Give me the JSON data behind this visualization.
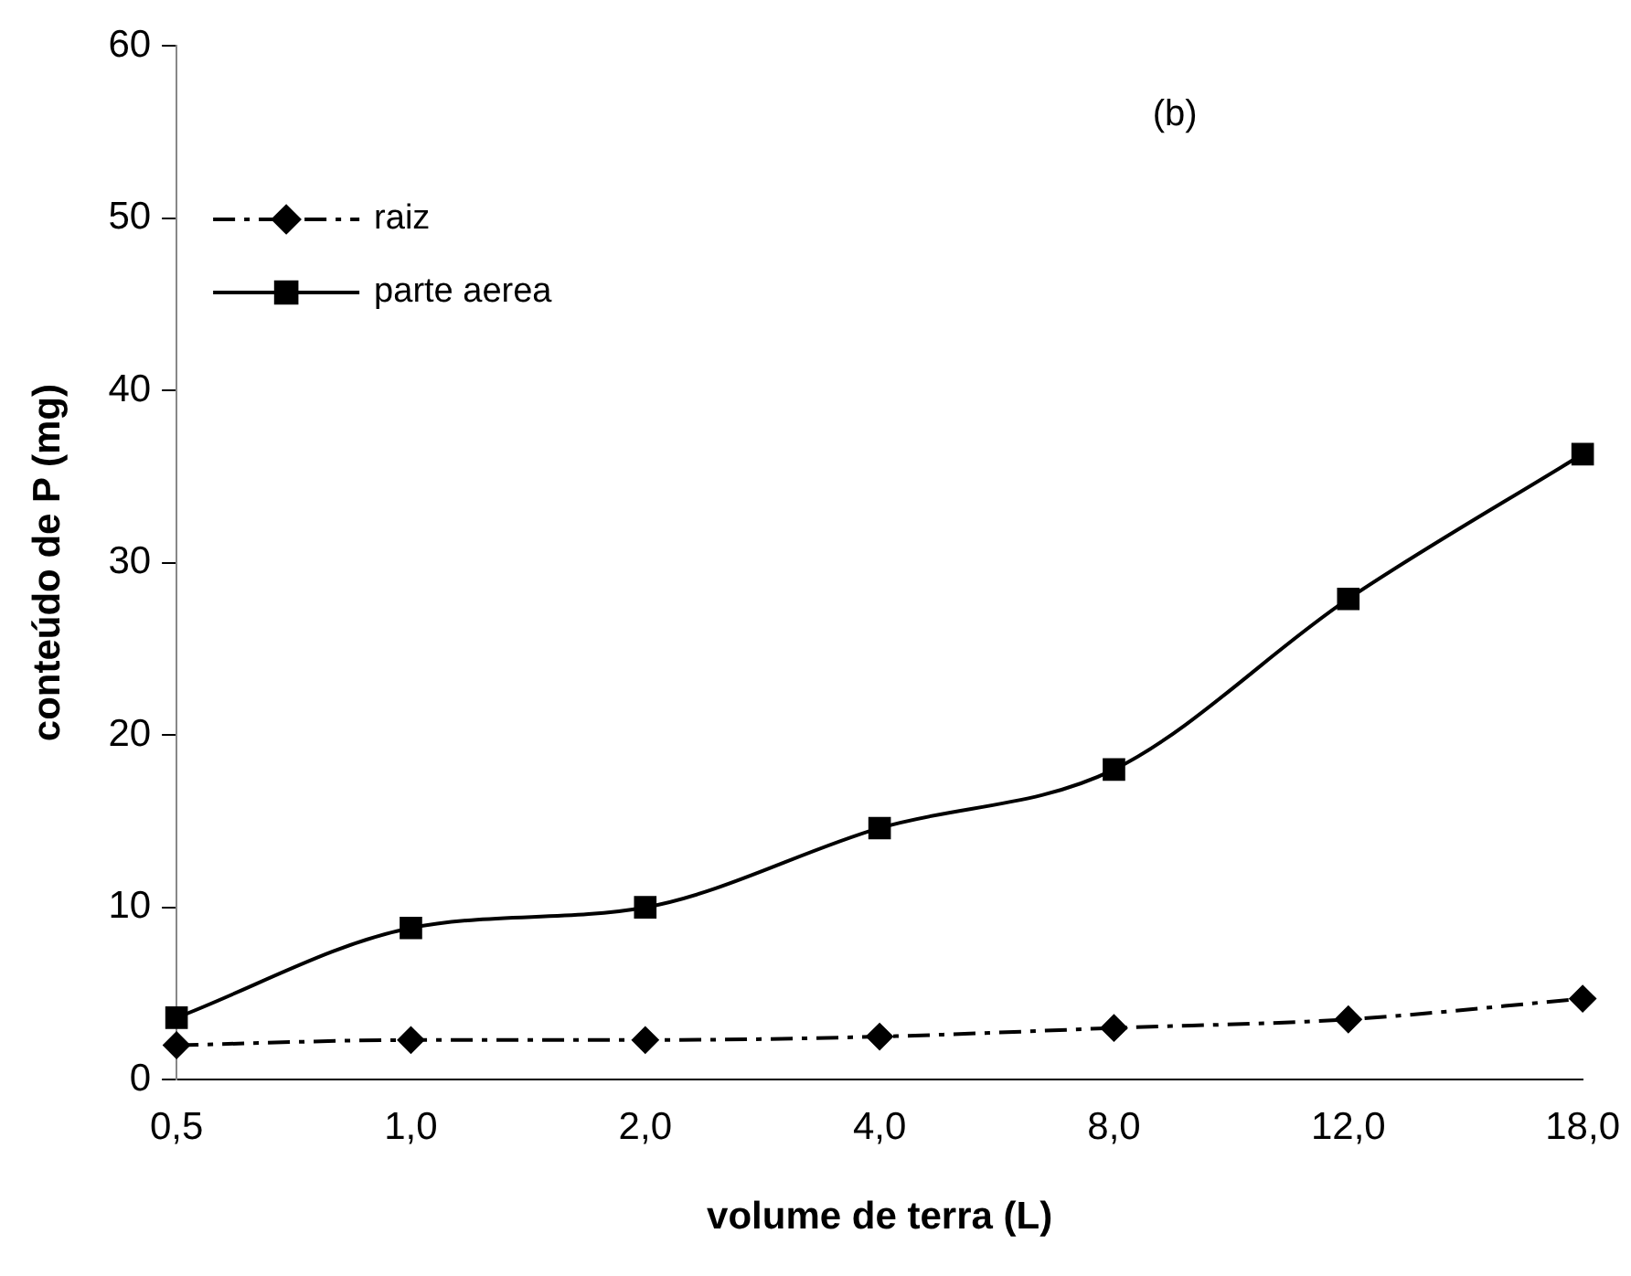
{
  "chart_data": {
    "type": "line",
    "title": "(b)",
    "xlabel": "volume de terra (L)",
    "ylabel": "conteúdo de P (mg)",
    "categories": [
      "0,5",
      "1,0",
      "2,0",
      "4,0",
      "8,0",
      "12,0",
      "18,0"
    ],
    "series": [
      {
        "name": "raiz",
        "color": "#000000",
        "marker": "diamond",
        "line_style": "dashed",
        "values": [
          2.0,
          2.3,
          2.3,
          2.5,
          3.0,
          3.5,
          4.7
        ]
      },
      {
        "name": "parte aerea",
        "color": "#000000",
        "marker": "square",
        "line_style": "solid",
        "values": [
          3.6,
          8.8,
          10.0,
          14.6,
          18.0,
          27.9,
          36.3
        ]
      }
    ],
    "ylim": [
      0,
      60
    ],
    "yticks": [
      0,
      10,
      20,
      30,
      40,
      50,
      60
    ],
    "grid": false,
    "legend": "top left"
  }
}
